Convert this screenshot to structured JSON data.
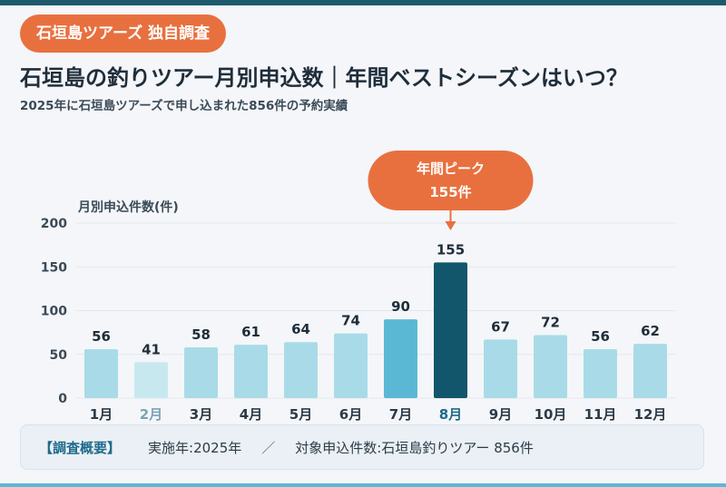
{
  "header": {
    "badge": "石垣島ツアーズ 独自調査",
    "title": "石垣島の釣りツアー月別申込数｜年間ベストシーズンはいつ？",
    "subtitle": "2025年に石垣島ツアーズで申し込まれた856件の予約実績"
  },
  "chart_data": {
    "type": "bar",
    "ylabel": "月別申込件数(件)",
    "ylim": [
      0,
      200
    ],
    "yticks": [
      0,
      50,
      100,
      150,
      200
    ],
    "grid": true,
    "categories": [
      "1月",
      "2月",
      "3月",
      "4月",
      "5月",
      "6月",
      "7月",
      "8月",
      "9月",
      "10月",
      "11月",
      "12月"
    ],
    "values": [
      56,
      41,
      58,
      61,
      64,
      74,
      90,
      155,
      67,
      72,
      56,
      62
    ],
    "bar_colors": [
      "#a8dbe7",
      "#c8e8ef",
      "#a8dbe7",
      "#a8dbe7",
      "#a8dbe7",
      "#a8dbe7",
      "#5bb8d4",
      "#11566b",
      "#a8dbe7",
      "#a8dbe7",
      "#a8dbe7",
      "#a8dbe7"
    ],
    "highlight_label_colors": {
      "2月": "#7aa4b3",
      "8月": "#1e6a8a"
    },
    "annotation": {
      "title": "年間ピーク",
      "value": "155件",
      "target": "8月",
      "color": "#e8703f"
    }
  },
  "summary": {
    "label": "【調査概要】",
    "period": "実施年:2025年",
    "separator": "／",
    "target": "対象申込件数:石垣島釣りツアー 856件"
  },
  "colors": {
    "accent": "#e8703f",
    "primary_dark": "#1e5a6e",
    "text": "#1f2d3a",
    "grid": "#e3e8ec"
  }
}
